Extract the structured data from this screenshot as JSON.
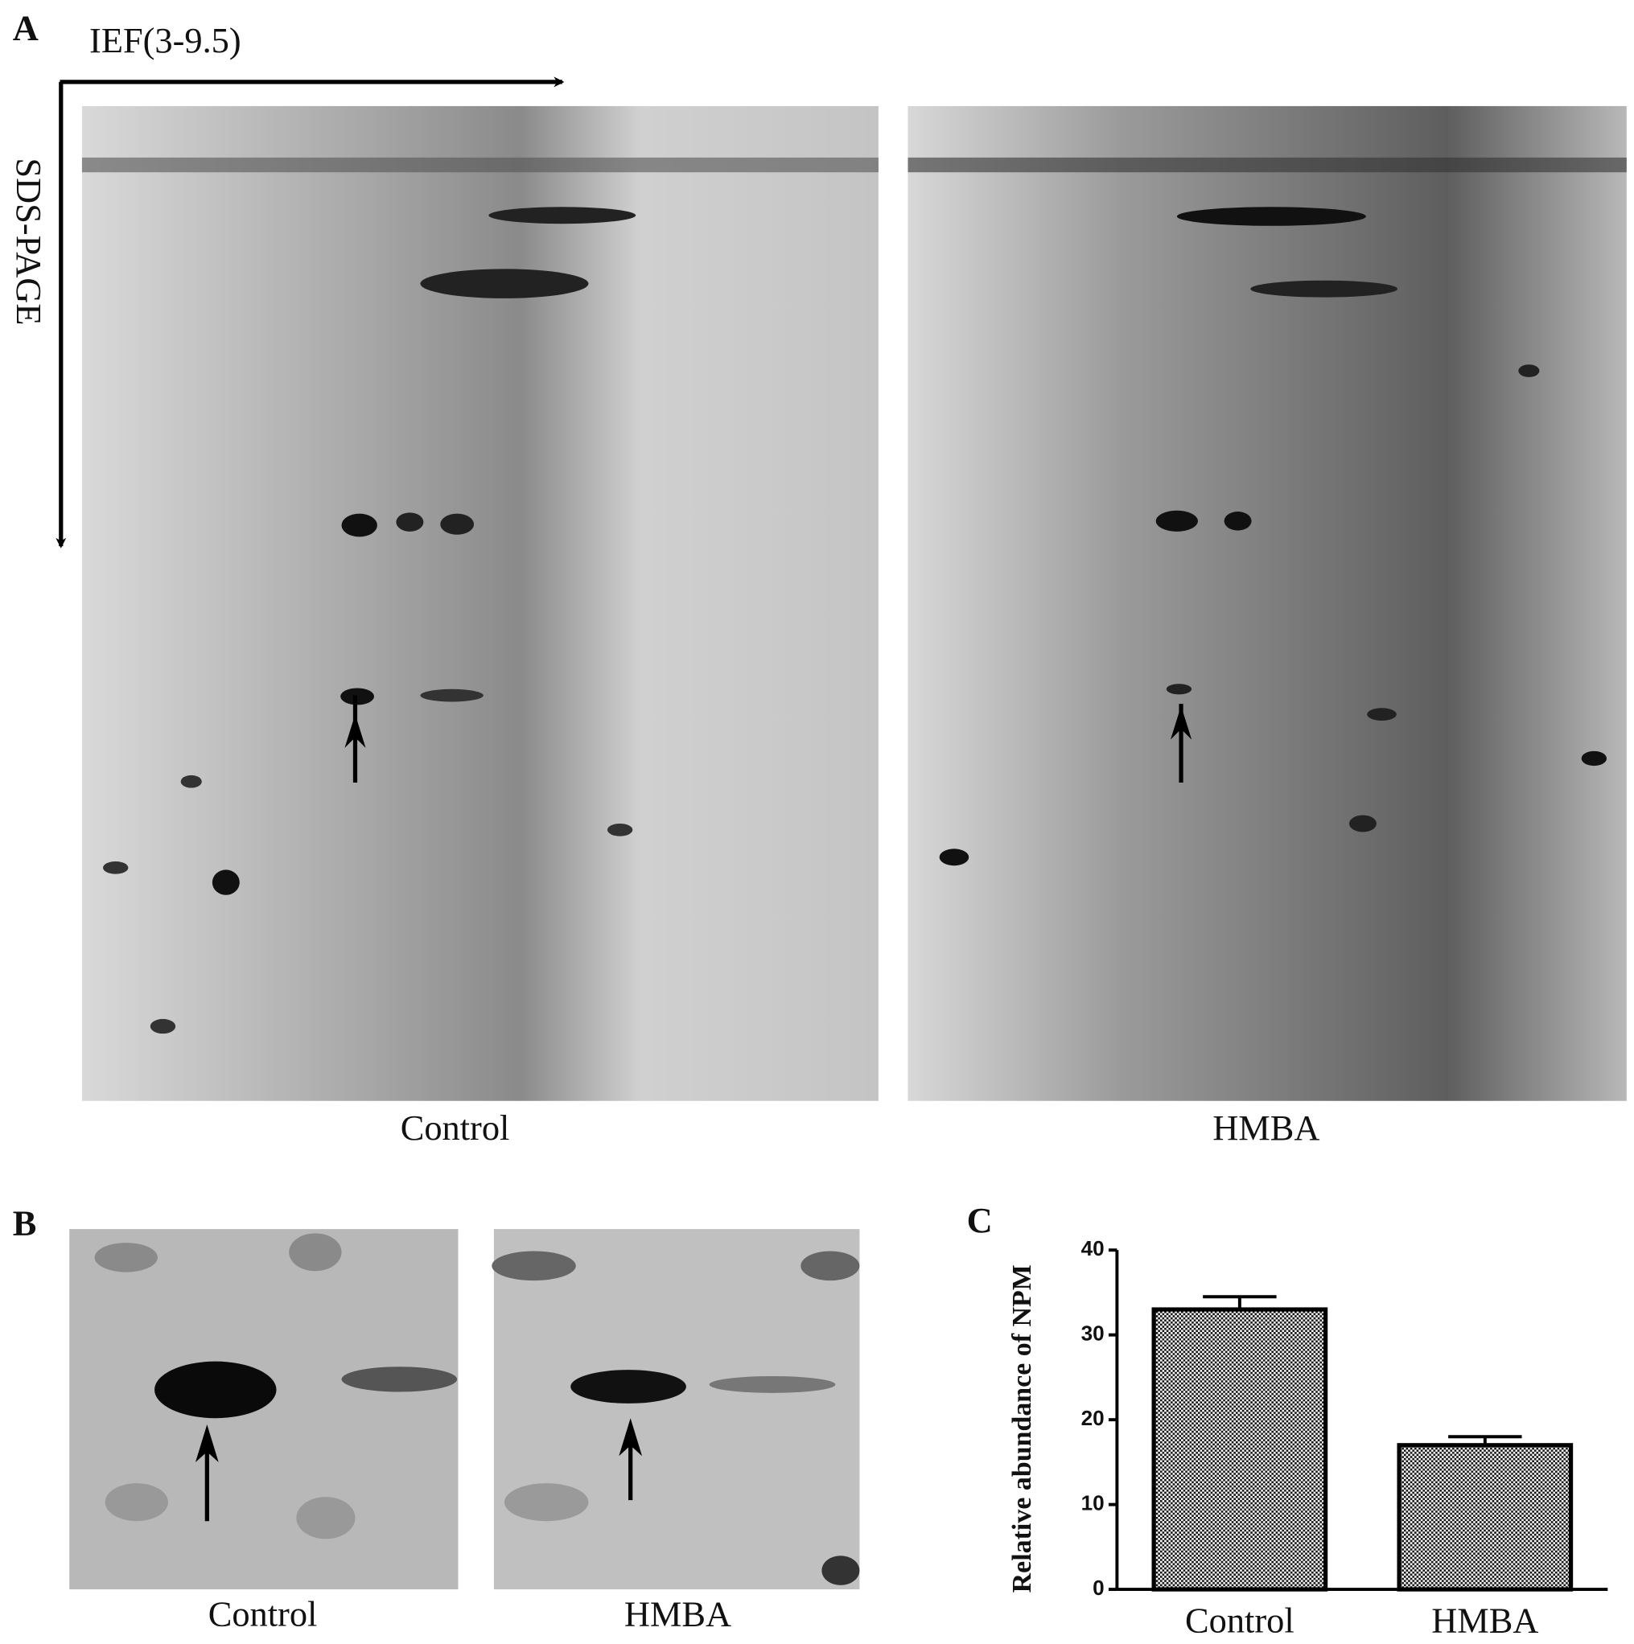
{
  "panel_a": {
    "label": "A",
    "x_axis": "IEF(3-9.5)",
    "y_axis": "SDS-PAGE",
    "gels": [
      "Control",
      "HMBA"
    ]
  },
  "panel_b": {
    "label": "B",
    "gels": [
      "Control",
      "HMBA"
    ]
  },
  "chart_data": {
    "type": "bar",
    "label": "C",
    "ylabel": "Relative abundance of NPM",
    "categories": [
      "Control",
      "HMBA"
    ],
    "values": [
      33,
      17
    ],
    "errors": [
      1.5,
      1
    ],
    "ylim": [
      0,
      40
    ],
    "yticks": [
      0,
      10,
      20,
      30,
      40
    ]
  }
}
